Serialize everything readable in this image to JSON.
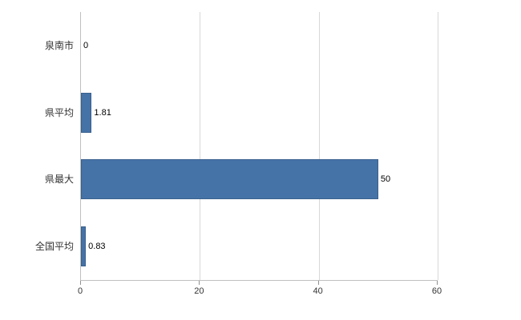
{
  "chart_data": {
    "type": "bar",
    "orientation": "horizontal",
    "title": "",
    "xlabel": "",
    "ylabel": "",
    "categories": [
      "泉南市",
      "県平均",
      "県最大",
      "全国平均"
    ],
    "values": [
      0,
      1.81,
      50,
      0.83
    ],
    "value_labels": [
      "0",
      "1.81",
      "50",
      "0.83"
    ],
    "xlim": [
      0,
      60
    ],
    "xticks": [
      0,
      20,
      40,
      60
    ],
    "xtick_labels": [
      "0",
      "20",
      "40",
      "60"
    ],
    "grid": true,
    "legend": false,
    "bar_color": "#4572a7",
    "grid_color": "#d8d8d8",
    "axis_color": "#c0c0c0",
    "background": "#ffffff"
  }
}
